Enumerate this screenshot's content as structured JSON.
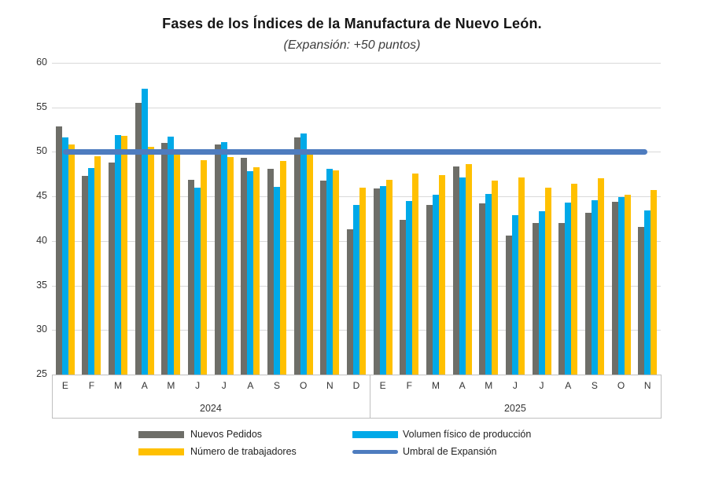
{
  "header": {
    "title": "Fases de los Índices de la Manufactura de Nuevo León.",
    "subtitle": "(Expansión: +50 puntos)"
  },
  "chart_data": {
    "type": "bar",
    "title": "Fases de los Índices de la Manufactura de Nuevo León.",
    "subtitle": "(Expansión: +50 puntos)",
    "ylim": [
      25,
      60
    ],
    "yticks": [
      60,
      55,
      50,
      45,
      40,
      35,
      30,
      25
    ],
    "grid": true,
    "legend_position": "bottom",
    "groups": [
      {
        "label": "2024",
        "categories": [
          "E",
          "F",
          "M",
          "A",
          "M",
          "J",
          "J",
          "A",
          "S",
          "O",
          "N",
          "D"
        ]
      },
      {
        "label": "2025",
        "categories": [
          "E",
          "F",
          "M",
          "A",
          "M",
          "J",
          "J",
          "A",
          "S",
          "O",
          "N"
        ]
      }
    ],
    "series": [
      {
        "name": "Nuevos Pedidos",
        "slug": "nuevos-pedidos",
        "color": "#6e6e68",
        "values": [
          [
            52.9,
            47.3,
            48.8,
            55.5,
            51.0,
            46.9,
            50.8,
            49.3,
            48.1,
            51.6,
            46.8,
            41.3
          ],
          [
            45.9,
            42.4,
            44.0,
            48.4,
            44.2,
            40.6,
            42.0,
            42.0,
            43.2,
            44.4,
            41.6
          ]
        ]
      },
      {
        "name": "Volumen físico de producción",
        "slug": "volumen-fisico-de-produccion",
        "color": "#00a9e8",
        "values": [
          [
            51.6,
            48.2,
            51.9,
            57.1,
            51.7,
            46.0,
            51.1,
            47.8,
            46.1,
            52.1,
            48.1,
            44.0
          ],
          [
            46.2,
            44.5,
            45.2,
            47.1,
            45.3,
            42.9,
            43.3,
            44.3,
            44.6,
            44.9,
            43.4
          ]
        ]
      },
      {
        "name": "Número de trabajadores",
        "slug": "numero-de-trabajadores",
        "color": "#ffc000",
        "values": [
          [
            50.8,
            49.5,
            51.8,
            50.6,
            49.7,
            49.1,
            49.4,
            48.3,
            49.0,
            49.8,
            47.9,
            46.0
          ],
          [
            46.9,
            47.6,
            47.4,
            48.6,
            46.8,
            47.1,
            46.0,
            46.4,
            47.0,
            45.2,
            45.7
          ]
        ]
      }
    ],
    "threshold_line": {
      "name": "Umbral de Expansión",
      "value": 50,
      "color": "#4e7cbf"
    },
    "legend": [
      {
        "label": "Nuevos Pedidos",
        "swatch": "bar",
        "color": "#6e6e68",
        "col": 0,
        "row": 0
      },
      {
        "label": "Número de trabajadores",
        "swatch": "bar",
        "color": "#ffc000",
        "col": 0,
        "row": 1
      },
      {
        "label": "Volumen físico de producción",
        "swatch": "bar",
        "color": "#00a9e8",
        "col": 1,
        "row": 0
      },
      {
        "label": "Umbral de Expansión",
        "swatch": "line",
        "color": "#4e7cbf",
        "col": 1,
        "row": 1
      }
    ]
  }
}
